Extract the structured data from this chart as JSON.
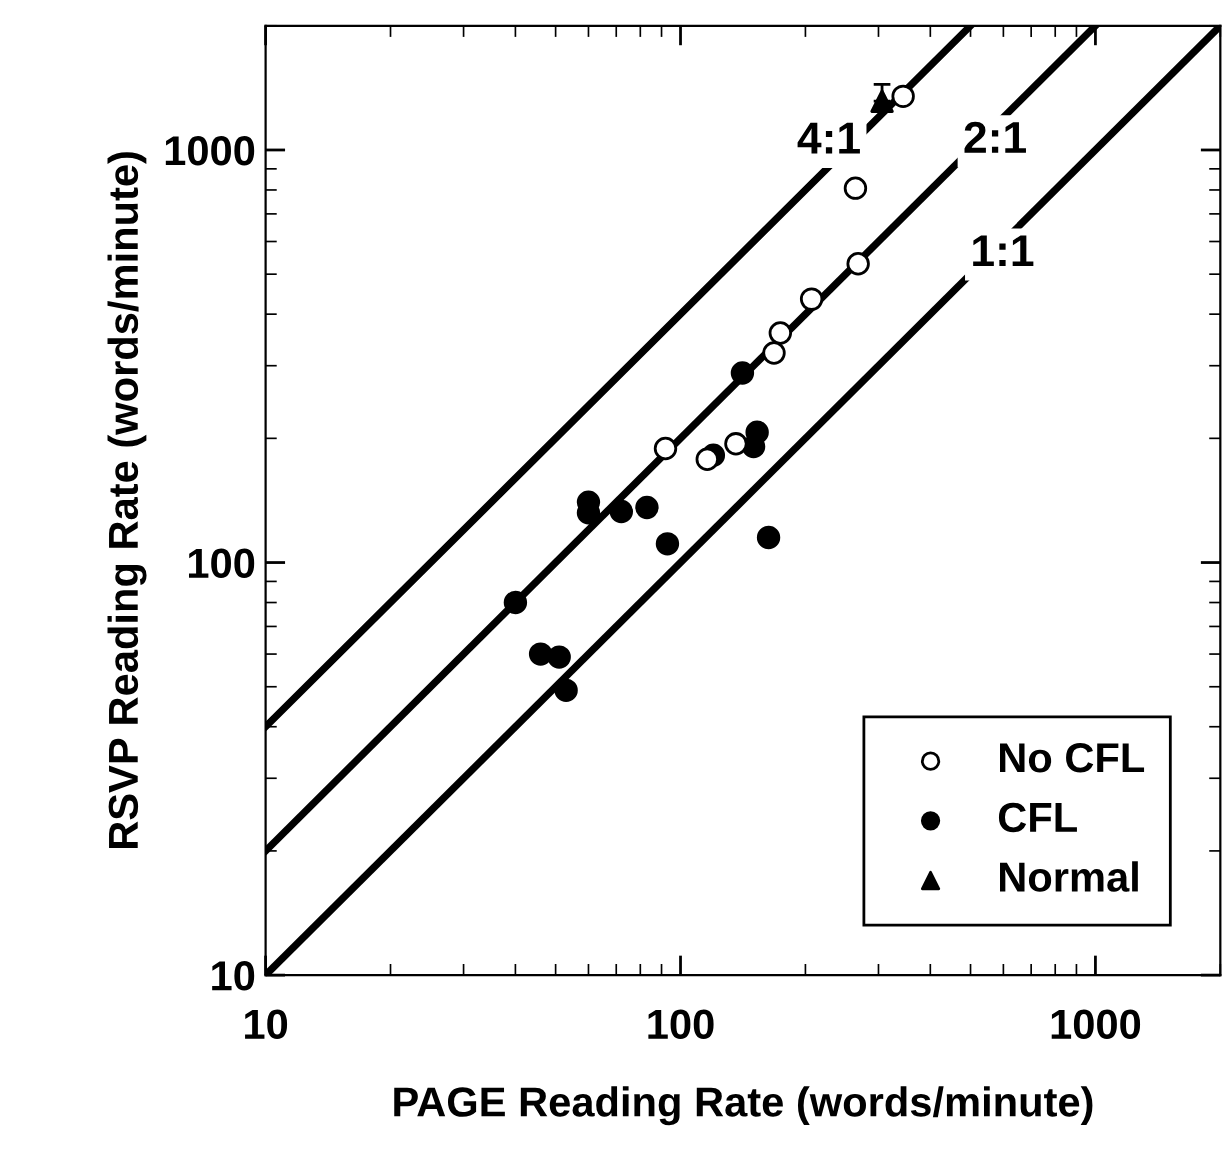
{
  "chart_data": {
    "type": "scatter",
    "xlabel": "PAGE Reading Rate (words/minute)",
    "ylabel": "RSVP Reading Rate (words/minute)",
    "log": "xy",
    "xlim": [
      10,
      2000
    ],
    "ylim": [
      10,
      2000
    ],
    "xticks": [
      10,
      100,
      1000
    ],
    "yticks": [
      10,
      100,
      1000
    ],
    "grid": false,
    "legend": "bottom right",
    "series": [
      {
        "type": "line",
        "color": "#000000",
        "marker": "none",
        "line_style": "solid",
        "x": [
          10,
          2000
        ],
        "values": [
          10,
          2000
        ]
      },
      {
        "type": "line",
        "color": "#000000",
        "marker": "none",
        "line_style": "solid",
        "x": [
          10,
          1000
        ],
        "values": [
          20,
          2000
        ]
      },
      {
        "type": "line",
        "color": "#000000",
        "marker": "none",
        "line_style": "solid",
        "x": [
          10,
          500
        ],
        "values": [
          40,
          2000
        ]
      },
      {
        "name": "No CFL",
        "color": "#ffffff",
        "marker": "circle",
        "x": [
          344,
          264,
          268,
          207,
          174,
          168,
          92,
          136,
          116
        ],
        "values": [
          1349,
          808,
          530,
          435,
          360,
          322,
          189,
          194,
          178
        ]
      },
      {
        "name": "CFL",
        "color": "#000000",
        "marker": "circle",
        "x": [
          141,
          153,
          150,
          120,
          60,
          60,
          72,
          83,
          93,
          163,
          40,
          46,
          51,
          53
        ],
        "values": [
          288,
          207,
          191,
          182,
          140,
          132,
          133,
          136,
          111,
          115,
          80,
          60,
          59,
          49
        ]
      },
      {
        "name": "Normal",
        "color": "#000000",
        "marker": "triangle",
        "x": [
          306
        ],
        "values": [
          1313
        ],
        "errors": [
          [
            1313,
            1443
          ]
        ]
      }
    ],
    "annotations": [
      {
        "text": "4:1",
        "x": 228,
        "y": 1046
      },
      {
        "text": "2:1",
        "x": 573,
        "y": 1050
      },
      {
        "text": "1:1",
        "x": 597,
        "y": 558
      }
    ]
  }
}
